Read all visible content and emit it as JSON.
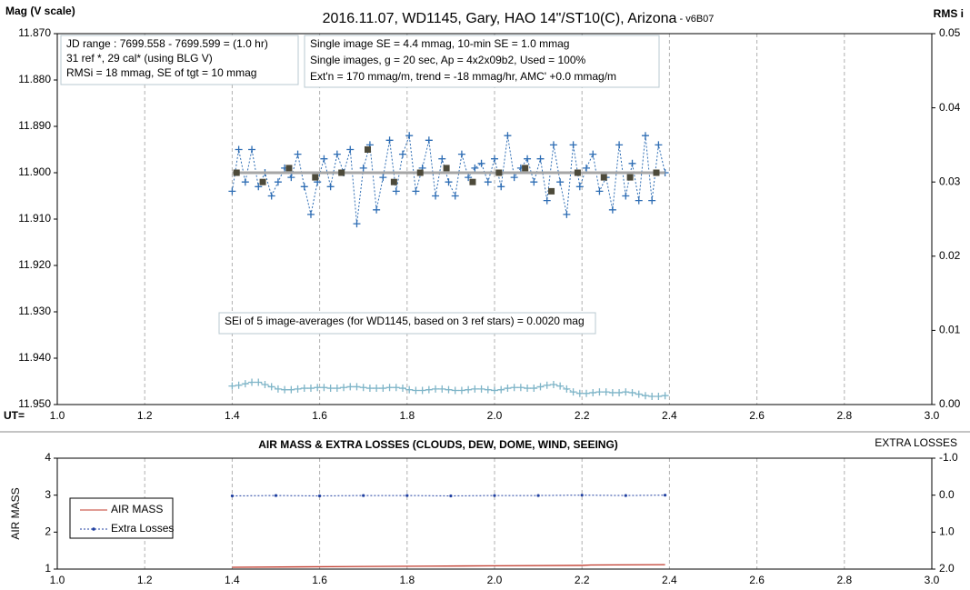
{
  "chart_data": [
    {
      "type": "line",
      "title": "2016.11.07, WD1145, Gary, HAO 14\"/ST10(C), Arizona",
      "subtitle": " - v6B07",
      "y_label": "Mag (V scale)",
      "y2_label": "RMS i",
      "x_label": "UT=",
      "xlim": [
        1,
        3
      ],
      "xticks": [
        {
          "value": 1,
          "label": "1.0"
        },
        {
          "value": 1.2,
          "label": "1.2"
        },
        {
          "value": 1.4,
          "label": "1.4"
        },
        {
          "value": 1.6,
          "label": "1.6"
        },
        {
          "value": 1.8,
          "label": "1.8"
        },
        {
          "value": 2,
          "label": "2.0"
        },
        {
          "value": 2.2,
          "label": "2.2"
        },
        {
          "value": 2.4,
          "label": "2.4"
        },
        {
          "value": 2.6,
          "label": "2.6"
        },
        {
          "value": 2.8,
          "label": "2.8"
        },
        {
          "value": 3,
          "label": "3.0"
        }
      ],
      "ylim": [
        11.87,
        11.95
      ],
      "y_inverted": true,
      "yticks": [
        {
          "value": 11.87,
          "label": "11.870"
        },
        {
          "value": 11.88,
          "label": "11.880"
        },
        {
          "value": 11.89,
          "label": "11.890"
        },
        {
          "value": 11.9,
          "label": "11.900"
        },
        {
          "value": 11.91,
          "label": "11.910"
        },
        {
          "value": 11.92,
          "label": "11.920"
        },
        {
          "value": 11.93,
          "label": "11.930"
        },
        {
          "value": 11.94,
          "label": "11.940"
        },
        {
          "value": 11.95,
          "label": "11.950"
        }
      ],
      "y2lim": [
        0,
        0.05
      ],
      "y2_inverted": false,
      "y2ticks": [
        {
          "value": 0,
          "label": "0.00"
        },
        0.01,
        0.02,
        0.03,
        0.04,
        0.05
      ],
      "grid": "x",
      "x": [
        1.4,
        1.415,
        1.43,
        1.445,
        1.46,
        1.475,
        1.49,
        1.505,
        1.52,
        1.535,
        1.55,
        1.565,
        1.58,
        1.595,
        1.61,
        1.625,
        1.64,
        1.655,
        1.67,
        1.685,
        1.7,
        1.715,
        1.73,
        1.745,
        1.76,
        1.775,
        1.79,
        1.805,
        1.82,
        1.835,
        1.85,
        1.865,
        1.88,
        1.895,
        1.91,
        1.925,
        1.94,
        1.955,
        1.97,
        1.985,
        2,
        2.015,
        2.03,
        2.045,
        2.06,
        2.075,
        2.09,
        2.105,
        2.12,
        2.135,
        2.15,
        2.165,
        2.18,
        2.195,
        2.21,
        2.225,
        2.24,
        2.255,
        2.27,
        2.285,
        2.3,
        2.315,
        2.33,
        2.345,
        2.36,
        2.375,
        2.39
      ],
      "series": [
        {
          "color": "#2e6db4",
          "marker": "plus",
          "line": "dotted",
          "values": [
            11.904,
            11.895,
            11.902,
            11.895,
            11.903,
            11.9,
            11.905,
            11.902,
            11.899,
            11.901,
            11.896,
            11.903,
            11.909,
            11.902,
            11.897,
            11.903,
            11.896,
            11.9,
            11.895,
            11.911,
            11.899,
            11.894,
            11.908,
            11.901,
            11.893,
            11.904,
            11.896,
            11.892,
            11.904,
            11.899,
            11.893,
            11.905,
            11.897,
            11.902,
            11.905,
            11.896,
            11.901,
            11.899,
            11.898,
            11.902,
            11.897,
            11.903,
            11.892,
            11.901,
            11.899,
            11.897,
            11.902,
            11.897,
            11.906,
            11.894,
            11.902,
            11.909,
            11.894,
            11.903,
            11.899,
            11.896,
            11.904,
            11.901,
            11.908,
            11.894,
            11.905,
            11.898,
            11.906,
            11.892,
            11.906,
            11.894,
            11.9
          ]
        },
        {
          "color": "#a6a6a6",
          "marker": "none",
          "line": "solid",
          "x": [
            1.4,
            2.39
          ],
          "values": [
            11.9,
            11.9
          ]
        },
        {
          "color": "#4d4a3a",
          "marker": "square",
          "line": "none",
          "x": [
            1.41,
            1.47,
            1.53,
            1.59,
            1.65,
            1.71,
            1.77,
            1.83,
            1.89,
            1.95,
            2.01,
            2.07,
            2.13,
            2.19,
            2.25,
            2.31,
            2.37
          ],
          "values": [
            11.9,
            11.902,
            11.899,
            11.901,
            11.9,
            11.895,
            11.902,
            11.9,
            11.899,
            11.902,
            11.9,
            11.899,
            11.904,
            11.9,
            11.901,
            11.901,
            11.9
          ]
        },
        {
          "color": "#7fb5c8",
          "marker": "plus",
          "line": "dotted",
          "axis": "y2",
          "values": [
            0.0025,
            0.0026,
            0.0028,
            0.003,
            0.003,
            0.0027,
            0.0024,
            0.0021,
            0.002,
            0.002,
            0.0021,
            0.0022,
            0.0022,
            0.0023,
            0.0023,
            0.0022,
            0.0022,
            0.0023,
            0.0024,
            0.0024,
            0.0023,
            0.0022,
            0.0022,
            0.0022,
            0.0023,
            0.0023,
            0.0022,
            0.002,
            0.0019,
            0.0019,
            0.002,
            0.0021,
            0.0021,
            0.002,
            0.0019,
            0.0019,
            0.002,
            0.0021,
            0.0021,
            0.002,
            0.0019,
            0.002,
            0.0022,
            0.0023,
            0.0023,
            0.0022,
            0.0022,
            0.0024,
            0.0026,
            0.0027,
            0.0025,
            0.0021,
            0.0017,
            0.0015,
            0.0015,
            0.0016,
            0.0017,
            0.0017,
            0.0016,
            0.0016,
            0.0017,
            0.0016,
            0.0014,
            0.0012,
            0.0011,
            0.0011,
            0.0012
          ]
        }
      ],
      "annotations": [
        [
          "JD range  : 7699.558 - 7699.599  = (1.0 hr)",
          "31 ref *, 29 cal* (using BLG V)",
          "RMSi = 18 mmag, SE of tgt = 10 mmag"
        ],
        [
          "Single image SE = 4.4 mmag, 10-min SE = 1.0 mmag",
          "Single images, g = 20 sec, Ap = 4x2x09b2, Used = 100%",
          "Ext'n = 170 mmag/m, trend = -18 mmag/hr, AMC' +0.0 mmag/m"
        ],
        [
          "SEi of 5 image-averages (for WD1145, based on 3 ref stars) = 0.0020 mag"
        ]
      ]
    },
    {
      "type": "line",
      "title": "AIR MASS & EXTRA LOSSES (CLOUDS, DEW, DOME, WIND, SEEING)",
      "y_label": "AIR MASS",
      "y2_label": "EXTRA LOSSES",
      "xlim": [
        1,
        3
      ],
      "xticks": [
        {
          "value": 1,
          "label": "1.0"
        },
        {
          "value": 1.2,
          "label": "1.2"
        },
        {
          "value": 1.4,
          "label": "1.4"
        },
        {
          "value": 1.6,
          "label": "1.6"
        },
        {
          "value": 1.8,
          "label": "1.8"
        },
        {
          "value": 2,
          "label": "2.0"
        },
        {
          "value": 2.2,
          "label": "2.2"
        },
        {
          "value": 2.4,
          "label": "2.4"
        },
        {
          "value": 2.6,
          "label": "2.6"
        },
        {
          "value": 2.8,
          "label": "2.8"
        },
        {
          "value": 3,
          "label": "3.0"
        }
      ],
      "ylim": [
        1,
        4
      ],
      "y_inverted": false,
      "yticks": [
        1,
        2,
        3,
        4
      ],
      "y2lim": [
        -1,
        2
      ],
      "y2_inverted": true,
      "y2ticks": [
        {
          "value": -1,
          "label": "-1.0"
        },
        {
          "value": 0,
          "label": "0.0"
        },
        {
          "value": 1,
          "label": "1.0"
        },
        {
          "value": 2,
          "label": "2.0"
        }
      ],
      "grid": "x",
      "legend": "bottom-left",
      "series": [
        {
          "name": "AIR MASS",
          "color": "#c0392b",
          "marker": "none",
          "line": "solid",
          "x": [
            1.4,
            1.55,
            1.7,
            1.85,
            2.0,
            2.2,
            2.22,
            2.39
          ],
          "values": [
            1.05,
            1.06,
            1.07,
            1.08,
            1.09,
            1.1,
            1.11,
            1.12
          ]
        },
        {
          "name": "Extra Losses",
          "color": "#1f3fa0",
          "marker": "dot",
          "line": "dotted",
          "axis": "y2",
          "x": [
            1.4,
            1.5,
            1.6,
            1.7,
            1.8,
            1.9,
            2.0,
            2.1,
            2.2,
            2.3,
            2.39
          ],
          "values": [
            0.02,
            0.01,
            0.02,
            0.01,
            0.01,
            0.02,
            0.01,
            0.01,
            0.0,
            0.01,
            0.0
          ]
        }
      ]
    }
  ]
}
